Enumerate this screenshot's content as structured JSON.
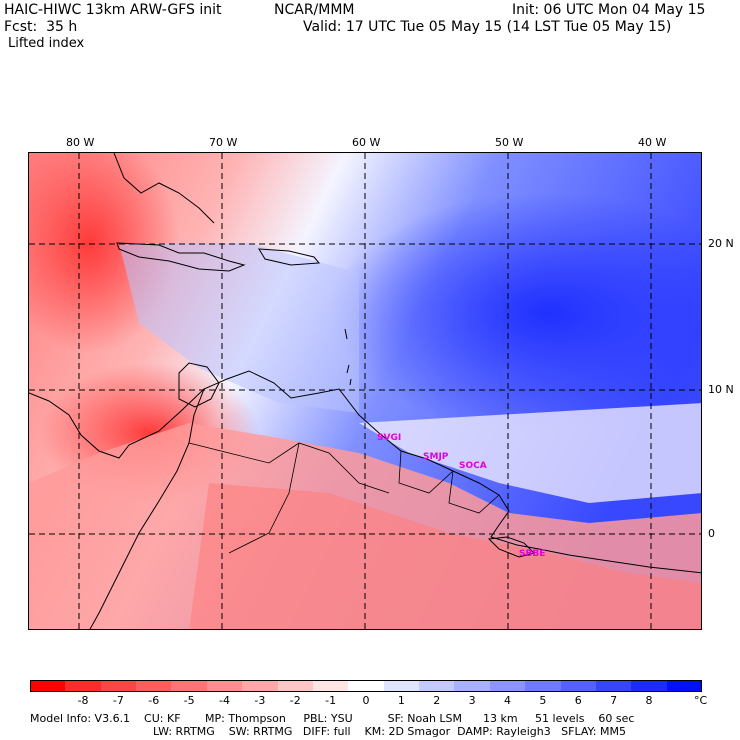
{
  "header": {
    "model": "HAIC-HIWC 13km ARW-GFS init",
    "org": "NCAR/MMM",
    "init": "Init: 06 UTC Mon 04 May 15",
    "fcst": "Fcst:  35 h",
    "valid": "Valid: 17 UTC Tue 05 May 15 (14 LST Tue 05 May 15)",
    "field": "Lifted index"
  },
  "map": {
    "lon_labels": [
      "80 W",
      "70 W",
      "60 W",
      "50 W",
      "40 W"
    ],
    "lat_labels": [
      "20 N",
      "10 N",
      "0"
    ],
    "stations": [
      "SVGI",
      "SMJP",
      "SOCA",
      "SBBE"
    ]
  },
  "colorbar": {
    "ticks": [
      "-8",
      "-7",
      "-6",
      "-5",
      "-4",
      "-3",
      "-2",
      "-1",
      "0",
      "1",
      "2",
      "3",
      "4",
      "5",
      "6",
      "7",
      "8"
    ],
    "unit": "°C",
    "colors": [
      "#ff0000",
      "#ff2a2a",
      "#ff4444",
      "#ff5c5c",
      "#ff7575",
      "#ff8e8e",
      "#ffa8a8",
      "#ffc6c6",
      "#ffe4e4",
      "#ffffff",
      "#e0e4ff",
      "#c4caff",
      "#a8b0ff",
      "#8c95ff",
      "#707aff",
      "#5460ff",
      "#3845ff",
      "#1c2aff",
      "#0010ff"
    ]
  },
  "footer": {
    "line1": "Model Info: V3.6.1    CU: KF       MP: Thompson     PBL: YSU          SF: Noah LSM      13 km     51 levels    60 sec",
    "line2": "LW: RRTMG    SW: RRTMG   DIFF: full    KM: 2D Smagor  DAMP: Rayleigh3   SFLAY: MM5"
  }
}
